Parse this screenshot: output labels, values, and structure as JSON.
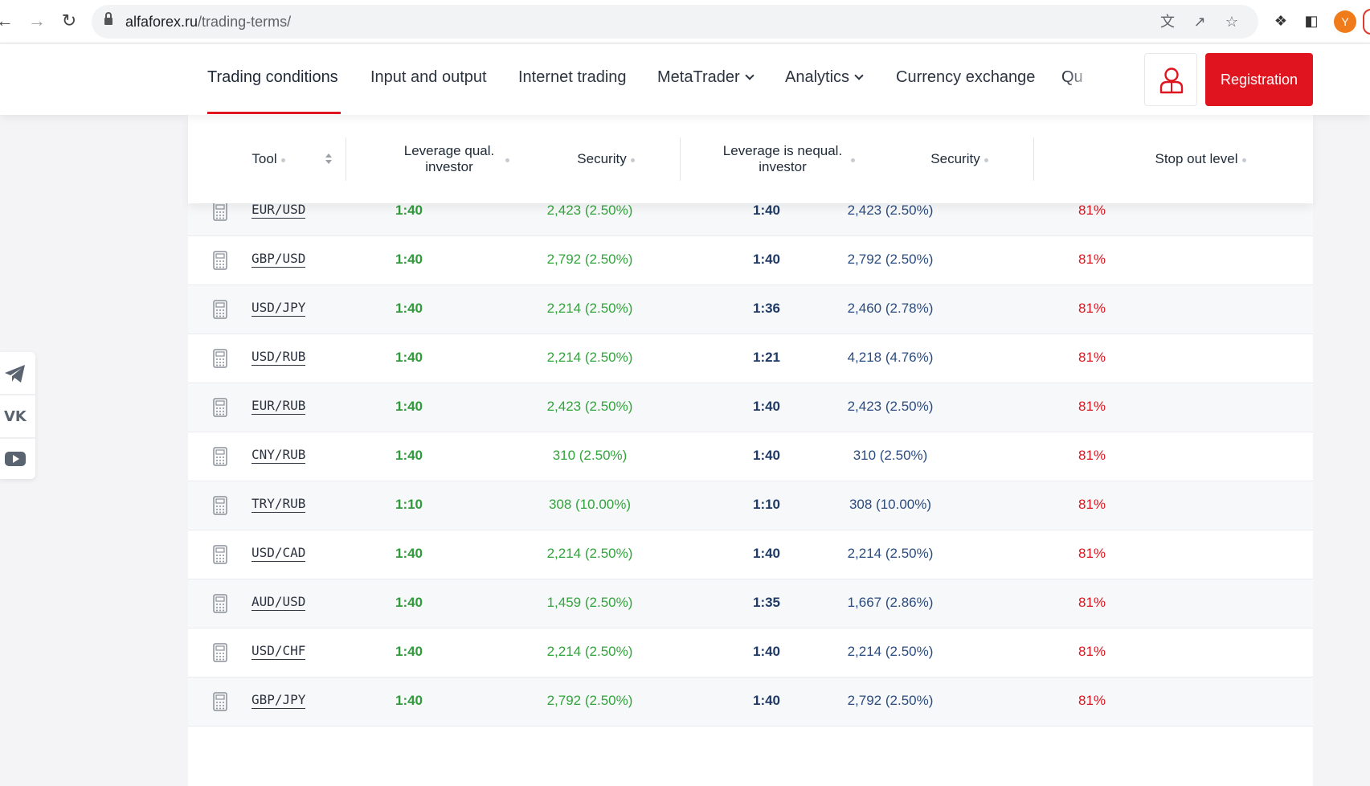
{
  "browser": {
    "url_host": "alfaforex.ru",
    "url_path": "/trading-terms/",
    "profile_initial": "Y"
  },
  "menu": {
    "items": [
      "Trading conditions",
      "Input and output",
      "Internet trading",
      "MetaTrader",
      "Analytics",
      "Currency exchange",
      "Qu"
    ],
    "register_label": "Registration"
  },
  "table": {
    "headers": {
      "tool": "Tool",
      "leverage_qual": "Leverage qual. investor",
      "security1": "Security",
      "leverage_nequal": "Leverage is nequal. investor",
      "security2": "Security",
      "stop_out": "Stop out level"
    },
    "rows": [
      {
        "tool": "EUR/USD",
        "lev1": "1:40",
        "sec1": "2,423 (2.50%)",
        "lev2": "1:40",
        "sec2": "2,423 (2.50%)",
        "stop": "81%"
      },
      {
        "tool": "GBP/USD",
        "lev1": "1:40",
        "sec1": "2,792 (2.50%)",
        "lev2": "1:40",
        "sec2": "2,792 (2.50%)",
        "stop": "81%"
      },
      {
        "tool": "USD/JPY",
        "lev1": "1:40",
        "sec1": "2,214 (2.50%)",
        "lev2": "1:36",
        "sec2": "2,460 (2.78%)",
        "stop": "81%"
      },
      {
        "tool": "USD/RUB",
        "lev1": "1:40",
        "sec1": "2,214 (2.50%)",
        "lev2": "1:21",
        "sec2": "4,218 (4.76%)",
        "stop": "81%"
      },
      {
        "tool": "EUR/RUB",
        "lev1": "1:40",
        "sec1": "2,423 (2.50%)",
        "lev2": "1:40",
        "sec2": "2,423 (2.50%)",
        "stop": "81%"
      },
      {
        "tool": "CNY/RUB",
        "lev1": "1:40",
        "sec1": "310 (2.50%)",
        "lev2": "1:40",
        "sec2": "310 (2.50%)",
        "stop": "81%"
      },
      {
        "tool": "TRY/RUB",
        "lev1": "1:10",
        "sec1": "308 (10.00%)",
        "lev2": "1:10",
        "sec2": "308 (10.00%)",
        "stop": "81%"
      },
      {
        "tool": "USD/CAD",
        "lev1": "1:40",
        "sec1": "2,214 (2.50%)",
        "lev2": "1:40",
        "sec2": "2,214 (2.50%)",
        "stop": "81%"
      },
      {
        "tool": "AUD/USD",
        "lev1": "1:40",
        "sec1": "1,459 (2.50%)",
        "lev2": "1:35",
        "sec2": "1,667 (2.86%)",
        "stop": "81%"
      },
      {
        "tool": "USD/CHF",
        "lev1": "1:40",
        "sec1": "2,214 (2.50%)",
        "lev2": "1:40",
        "sec2": "2,214 (2.50%)",
        "stop": "81%"
      },
      {
        "tool": "GBP/JPY",
        "lev1": "1:40",
        "sec1": "2,792 (2.50%)",
        "lev2": "1:40",
        "sec2": "2,792 (2.50%)",
        "stop": "81%"
      }
    ]
  },
  "social": {
    "icons": [
      "telegram-icon",
      "vk-icon",
      "youtube-icon"
    ]
  },
  "colors": {
    "brand_red": "#e0141e",
    "green": "#32a43c",
    "navy": "#1f3a66",
    "blue": "#2b4c80"
  }
}
